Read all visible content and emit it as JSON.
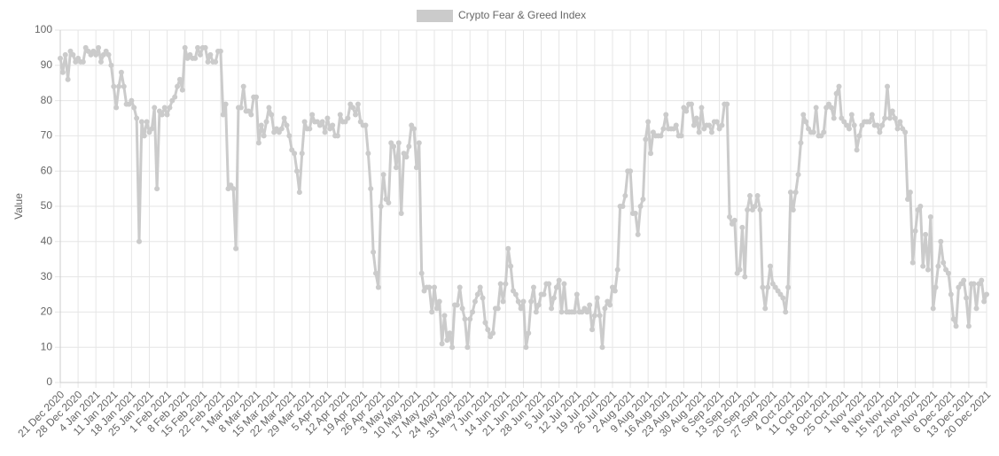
{
  "chart_data": {
    "type": "line",
    "y_label": "Value",
    "grid": true,
    "legend": "top",
    "ylim": [
      0,
      100
    ],
    "yticks": [
      0,
      10,
      20,
      30,
      40,
      50,
      60,
      70,
      80,
      90,
      100
    ],
    "categories": [
      "21 Dec 2020",
      null,
      null,
      null,
      null,
      null,
      null,
      "28 Dec 2020",
      null,
      null,
      null,
      null,
      null,
      null,
      "4 Jan 2021",
      null,
      null,
      null,
      null,
      null,
      null,
      "11 Jan 2021",
      null,
      null,
      null,
      null,
      null,
      null,
      "18 Jan 2021",
      null,
      null,
      null,
      null,
      null,
      null,
      "25 Jan 2021",
      null,
      null,
      null,
      null,
      null,
      null,
      "1 Feb 2021",
      null,
      null,
      null,
      null,
      null,
      null,
      "8 Feb 2021",
      null,
      null,
      null,
      null,
      null,
      null,
      "15 Feb 2021",
      null,
      null,
      null,
      null,
      null,
      null,
      "22 Feb 2021",
      null,
      null,
      null,
      null,
      null,
      null,
      "1 Mar 2021",
      null,
      null,
      null,
      null,
      null,
      null,
      "8 Mar 2021",
      null,
      null,
      null,
      null,
      null,
      null,
      "15 Mar 2021",
      null,
      null,
      null,
      null,
      null,
      null,
      "22 Mar 2021",
      null,
      null,
      null,
      null,
      null,
      null,
      "29 Mar 2021",
      null,
      null,
      null,
      null,
      null,
      null,
      "5 Apr 2021",
      null,
      null,
      null,
      null,
      null,
      null,
      "12 Apr 2021",
      null,
      null,
      null,
      null,
      null,
      null,
      "19 Apr 2021",
      null,
      null,
      null,
      null,
      null,
      null,
      "26 Apr 2021",
      null,
      null,
      null,
      null,
      null,
      null,
      "3 May 2021",
      null,
      null,
      null,
      null,
      null,
      null,
      "10 May 2021",
      null,
      null,
      null,
      null,
      null,
      null,
      "17 May 2021",
      null,
      null,
      null,
      null,
      null,
      null,
      "24 May 2021",
      null,
      null,
      null,
      null,
      null,
      null,
      "31 May 2021",
      null,
      null,
      null,
      null,
      null,
      null,
      "7 Jun 2021",
      null,
      null,
      null,
      null,
      null,
      null,
      "14 Jun 2021",
      null,
      null,
      null,
      null,
      null,
      null,
      "21 Jun 2021",
      null,
      null,
      null,
      null,
      null,
      null,
      "28 Jun 2021",
      null,
      null,
      null,
      null,
      null,
      null,
      "5 Jul 2021",
      null,
      null,
      null,
      null,
      null,
      null,
      "12 Jul 2021",
      null,
      null,
      null,
      null,
      null,
      null,
      "19 Jul 2021",
      null,
      null,
      null,
      null,
      null,
      null,
      "26 Jul 2021",
      null,
      null,
      null,
      null,
      null,
      null,
      "2 Aug 2021",
      null,
      null,
      null,
      null,
      null,
      null,
      "9 Aug 2021",
      null,
      null,
      null,
      null,
      null,
      null,
      "16 Aug 2021",
      null,
      null,
      null,
      null,
      null,
      null,
      "23 Aug 2021",
      null,
      null,
      null,
      null,
      null,
      null,
      "30 Aug 2021",
      null,
      null,
      null,
      null,
      null,
      null,
      "6 Sep 2021",
      null,
      null,
      null,
      null,
      null,
      null,
      "13 Sep 2021",
      null,
      null,
      null,
      null,
      null,
      null,
      "20 Sep 2021",
      null,
      null,
      null,
      null,
      null,
      null,
      "27 Sep 2021",
      null,
      null,
      null,
      null,
      null,
      null,
      "4 Oct 2021",
      null,
      null,
      null,
      null,
      null,
      null,
      "11 Oct 2021",
      null,
      null,
      null,
      null,
      null,
      null,
      "18 Oct 2021",
      null,
      null,
      null,
      null,
      null,
      null,
      "25 Oct 2021",
      null,
      null,
      null,
      null,
      null,
      null,
      "1 Nov 2021",
      null,
      null,
      null,
      null,
      null,
      null,
      "8 Nov 2021",
      null,
      null,
      null,
      null,
      null,
      null,
      "15 Nov 2021",
      null,
      null,
      null,
      null,
      null,
      null,
      "22 Nov 2021",
      null,
      null,
      null,
      null,
      null,
      null,
      "29 Nov 2021",
      null,
      null,
      null,
      null,
      null,
      null,
      "6 Dec 2021",
      null,
      null,
      null,
      null,
      null,
      null,
      "13 Dec 2021",
      null,
      null,
      null,
      null,
      null,
      null,
      "20 Dec 2021"
    ],
    "series": [
      {
        "name": "Crypto Fear & Greed Index",
        "color": "#cbcbcb",
        "values": [
          92,
          88,
          93,
          86,
          94,
          93,
          91,
          92,
          91,
          91,
          95,
          94,
          93,
          94,
          93,
          95,
          91,
          93,
          94,
          93,
          90,
          84,
          78,
          84,
          88,
          84,
          79,
          79,
          80,
          78,
          75,
          40,
          74,
          70,
          74,
          71,
          72,
          78,
          55,
          77,
          76,
          78,
          76,
          78,
          80,
          81,
          84,
          86,
          83,
          95,
          92,
          93,
          92,
          92,
          95,
          93,
          95,
          95,
          91,
          93,
          91,
          91,
          94,
          94,
          76,
          79,
          55,
          56,
          55,
          38,
          78,
          78,
          84,
          77,
          77,
          76,
          81,
          81,
          68,
          73,
          70,
          74,
          78,
          76,
          71,
          72,
          71,
          72,
          75,
          73,
          70,
          66,
          65,
          60,
          54,
          65,
          74,
          72,
          72,
          76,
          74,
          74,
          73,
          74,
          71,
          75,
          72,
          73,
          70,
          70,
          76,
          74,
          74,
          75,
          79,
          78,
          76,
          79,
          74,
          73,
          73,
          65,
          55,
          37,
          31,
          27,
          50,
          59,
          52,
          51,
          68,
          67,
          61,
          68,
          48,
          65,
          64,
          67,
          73,
          72,
          61,
          68,
          31,
          26,
          27,
          27,
          20,
          27,
          21,
          23,
          11,
          19,
          12,
          14,
          10,
          22,
          22,
          27,
          21,
          18,
          10,
          18,
          20,
          23,
          25,
          27,
          24,
          17,
          15,
          13,
          14,
          21,
          21,
          28,
          23,
          28,
          38,
          33,
          26,
          25,
          23,
          21,
          23,
          10,
          14,
          23,
          27,
          20,
          22,
          25,
          25,
          28,
          28,
          21,
          24,
          27,
          29,
          20,
          28,
          20,
          20,
          20,
          20,
          25,
          20,
          20,
          21,
          20,
          22,
          15,
          19,
          24,
          19,
          10,
          21,
          23,
          22,
          27,
          26,
          32,
          50,
          50,
          53,
          60,
          60,
          48,
          48,
          42,
          50,
          52,
          69,
          74,
          65,
          71,
          70,
          70,
          70,
          72,
          76,
          72,
          72,
          72,
          73,
          70,
          70,
          78,
          77,
          79,
          79,
          73,
          75,
          71,
          78,
          72,
          73,
          73,
          71,
          74,
          74,
          72,
          73,
          79,
          79,
          47,
          45,
          46,
          31,
          32,
          44,
          30,
          49,
          53,
          49,
          50,
          53,
          49,
          27,
          21,
          27,
          33,
          28,
          27,
          26,
          25,
          24,
          20,
          27,
          54,
          49,
          54,
          59,
          68,
          76,
          74,
          72,
          71,
          71,
          78,
          70,
          70,
          71,
          78,
          79,
          78,
          75,
          82,
          84,
          75,
          74,
          73,
          72,
          76,
          73,
          66,
          70,
          73,
          74,
          74,
          74,
          76,
          73,
          73,
          71,
          73,
          75,
          84,
          75,
          77,
          75,
          72,
          74,
          72,
          71,
          52,
          54,
          34,
          43,
          49,
          50,
          33,
          42,
          32,
          47,
          21,
          27,
          33,
          40,
          34,
          32,
          31,
          25,
          18,
          16,
          27,
          28,
          29,
          24,
          16,
          28,
          28,
          21,
          28,
          29,
          23,
          25
        ]
      }
    ]
  }
}
